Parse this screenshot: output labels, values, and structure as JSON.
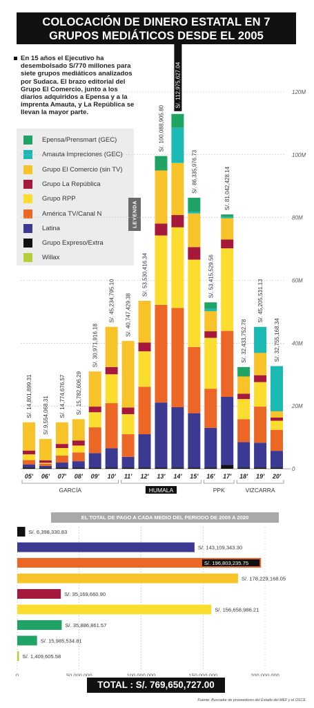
{
  "title": [
    "COLOCACIÓN DE DINERO ESTATAL EN 7",
    "GRUPOS MEDIÁTICOS DESDE EL 2005"
  ],
  "intro": "En 15 años el Ejecutivo ha desembolsado S/770 millones para siete grupos mediáticos analizados por Sudaca. El brazo editorial del Grupo El Comercio, junto a los diarios adquiridos a Epensa y a la imprenta Amauta, y La República se llevan la mayor parte.",
  "legend_tab": "LEYENDA",
  "groups": [
    {
      "name": "Epensa/Prensmart (GEC)",
      "color": "#1fa465"
    },
    {
      "name": "Amauta Impreciones (GEC)",
      "color": "#1bb8b4"
    },
    {
      "name": "Grupo El Comercio (sin TV)",
      "color": "#f7c328"
    },
    {
      "name": "Grupo La República",
      "color": "#a6193c"
    },
    {
      "name": "Grupo RPP",
      "color": "#fbdd30"
    },
    {
      "name": "América TV/Canal N",
      "color": "#ec6625"
    },
    {
      "name": "Latina",
      "color": "#3b3991"
    },
    {
      "name": "Grupo Expreso/Extra",
      "color": "#111111"
    },
    {
      "name": "Willax",
      "color": "#b4cf3a"
    }
  ],
  "chart_data": [
    {
      "type": "bar",
      "stacked": true,
      "categories": [
        "05'",
        "06'",
        "07'",
        "08'",
        "09'",
        "10'",
        "11'",
        "12'",
        "13'",
        "14'",
        "15'",
        "16'",
        "17'",
        "18'",
        "19'",
        "20'"
      ],
      "totals": [
        "S/. 14,801,899.31",
        "S/.9,554,068.31",
        "S/. 14,774,676.57",
        "S/. 15,782,606.29",
        "S/. 30,971,916.18",
        "S/. 45,234,795.10",
        "S/. 40,747,429.38",
        "S/. 53,530,416.34",
        "S/. 100,088,905.80",
        "S/. 112,975,627.04",
        "S/. 86,335,976.73",
        "S/. 53,415,529.56",
        "S/. 81,042,428.14",
        "S/. 32,433,752.78",
        "S/. 45,205,531.13",
        "S/. 32,755,168.34"
      ],
      "highlight_total_index": 9,
      "series": [
        {
          "name": "Grupo Expreso/Extra",
          "values": [
            0.4,
            0.3,
            0.4,
            0.4,
            0.4,
            0.4,
            0.4,
            0.4,
            0.4,
            0.4,
            0.4,
            0.4,
            1.2,
            0.4,
            0.4,
            0.4
          ]
        },
        {
          "name": "Latina",
          "values": [
            1.0,
            0.6,
            1.6,
            2.0,
            4.6,
            6.1,
            3.4,
            10.6,
            20.7,
            19.2,
            17.3,
            12.6,
            21.7,
            8.1,
            7.9,
            5.3
          ]
        },
        {
          "name": "América TV/Canal N",
          "values": [
            1.4,
            0.7,
            2.2,
            2.8,
            8.2,
            14.4,
            7.2,
            15.1,
            31.1,
            31.6,
            21.1,
            12.5,
            21.0,
            7.3,
            11.5,
            6.7
          ]
        },
        {
          "name": "Grupo RPP",
          "values": [
            1.8,
            0.3,
            2.4,
            2.2,
            4.8,
            9.2,
            6.4,
            11.3,
            22.1,
            25.7,
            27.8,
            16.2,
            26.3,
            6.4,
            7.8,
            2.9
          ]
        },
        {
          "name": "Grupo La República",
          "values": [
            1.2,
            0.8,
            1.3,
            1.6,
            1.8,
            2.3,
            2.1,
            2.8,
            3.8,
            3.9,
            4.0,
            2.1,
            2.8,
            1.7,
            2.2,
            1.0
          ]
        },
        {
          "name": "Grupo El Comercio (sin TV)",
          "values": [
            9.0,
            6.8,
            6.9,
            6.8,
            11.2,
            12.8,
            21.2,
            13.3,
            16.9,
            16.6,
            10.7,
            6.4,
            6.8,
            5.5,
            7.1,
            2.0
          ]
        },
        {
          "name": "Amauta Impreciones (GEC)",
          "values": [
            0,
            0,
            0,
            0,
            0,
            0,
            0,
            0,
            0,
            11.2,
            0.6,
            0.7,
            0.4,
            0,
            8.3,
            14.4
          ]
        },
        {
          "name": "Epensa/Prensmart (GEC)",
          "values": [
            0,
            0,
            0,
            0,
            0,
            0,
            0,
            0,
            4.6,
            4.4,
            4.4,
            2.1,
            0.8,
            3.0,
            0,
            0
          ]
        },
        {
          "name": "Willax",
          "values": [
            0,
            0,
            0,
            0,
            0,
            0,
            0,
            0,
            0,
            0,
            0,
            0,
            0,
            0,
            0,
            0
          ]
        }
      ],
      "ylim": [
        0,
        120
      ],
      "yticks": [
        "0",
        "20M",
        "40M",
        "60M",
        "80M",
        "100M",
        "120M"
      ],
      "grid": true,
      "periods": [
        {
          "label": "GARCÍA",
          "from": 0,
          "to": 5,
          "highlight": false
        },
        {
          "label": "HUMALA",
          "from": 6,
          "to": 10,
          "highlight": true
        },
        {
          "label": "PPK",
          "from": 11,
          "to": 12,
          "highlight": false
        },
        {
          "label": "VIZCARRA",
          "from": 13,
          "to": 15,
          "highlight": false
        }
      ]
    },
    {
      "type": "bar",
      "orientation": "horizontal",
      "title": "EL TOTAL DE PAGO A CADA MEDIO DEL PERIODO DE 2005 A 2020",
      "bars": [
        {
          "group": "Grupo Expreso/Extra",
          "value": 6398330.83,
          "label": "S/. 6,398,330.83",
          "highlight": false
        },
        {
          "group": "Latina",
          "value": 143109343.3,
          "label": "S/. 143,109,343.30",
          "highlight": false
        },
        {
          "group": "América TV/Canal N",
          "value": 196803235.75,
          "label": "S/. 196,803,235.75",
          "highlight": true
        },
        {
          "group": "Grupo El Comercio (sin TV)",
          "value": 178229168.05,
          "label": "S/. 178,229,168.05",
          "highlight": false
        },
        {
          "group": "Grupo La República",
          "value": 35169660.9,
          "label": "S/. 35,169,660.90",
          "highlight": false
        },
        {
          "group": "Grupo RPP",
          "value": 156658986.21,
          "label": "S/. 156,658,986.21",
          "highlight": false
        },
        {
          "group": "Epensa/Prensmart (GEC)",
          "value": 35886861.57,
          "label": "S/. 35,886,861.57",
          "highlight": false
        },
        {
          "group": "Epensa/Prensmart (GEC)",
          "value": 15985534.81,
          "label": "S/. 15,985,534.81",
          "highlight": false
        },
        {
          "group": "Willax",
          "value": 1409605.58,
          "label": "S/. 1,409,605.58",
          "highlight": false
        }
      ],
      "xlim": [
        0,
        200000000
      ],
      "xticks": [
        "0",
        "50,000,000",
        "100,000,000",
        "150,000,000",
        "200,000,000"
      ],
      "grid": true
    }
  ],
  "total": "TOTAL : S/. 769,650,727.00",
  "source": "Fuente: Buscador de proveedores del Estado del MEF y el OSCE"
}
